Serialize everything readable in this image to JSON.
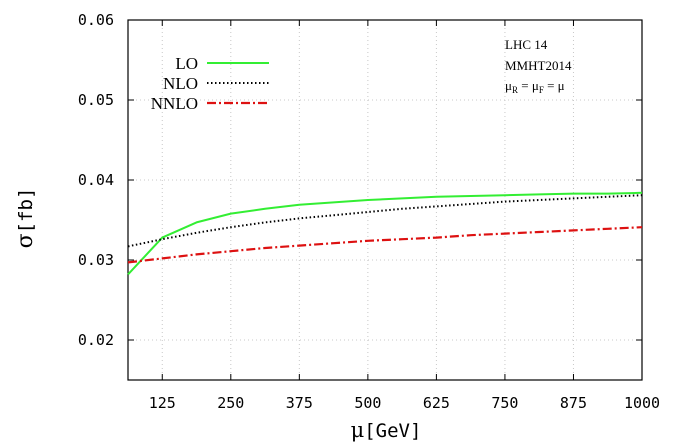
{
  "chart_data": {
    "type": "line",
    "xlabel_symbol": "μ",
    "xlabel_unit": "[GeV]",
    "ylabel_symbol": "σ",
    "ylabel_unit": "[fb]",
    "xlim": [
      62.5,
      1000
    ],
    "ylim": [
      0.015,
      0.06
    ],
    "x_ticks": [
      125,
      250,
      375,
      500,
      625,
      750,
      875,
      1000
    ],
    "x_tick_labels": [
      "125",
      "250",
      "375",
      "500",
      "625",
      "750",
      "875",
      "1000"
    ],
    "y_ticks": [
      0.02,
      0.03,
      0.04,
      0.05,
      0.06
    ],
    "y_tick_labels": [
      "0.02",
      "0.03",
      "0.04",
      "0.05",
      "0.06"
    ],
    "grid": true,
    "legend_position": "top-left",
    "annotations": {
      "line1": "LHC 14",
      "line2": "MMHT2014",
      "line3_mu_r": "μ",
      "line3_r_sub": "R",
      "line3_eq1": " = ",
      "line3_mu_f": "μ",
      "line3_f_sub": "F",
      "line3_eq2": " = μ"
    },
    "series": [
      {
        "name": "LO",
        "color": "#33ee33",
        "style": "solid",
        "x": [
          62.5,
          125,
          187.5,
          250,
          312.5,
          375,
          437.5,
          500,
          562.5,
          625,
          687.5,
          750,
          812.5,
          875,
          937.5,
          1000
        ],
        "y": [
          0.0282,
          0.0328,
          0.0347,
          0.0358,
          0.0364,
          0.0369,
          0.0372,
          0.0375,
          0.0377,
          0.0379,
          0.038,
          0.0381,
          0.0382,
          0.0383,
          0.0383,
          0.0384
        ]
      },
      {
        "name": "NLO",
        "color": "#000000",
        "style": "dotted",
        "x": [
          62.5,
          125,
          187.5,
          250,
          312.5,
          375,
          437.5,
          500,
          562.5,
          625,
          687.5,
          750,
          812.5,
          875,
          937.5,
          1000
        ],
        "y": [
          0.0317,
          0.0326,
          0.0334,
          0.0341,
          0.0347,
          0.0352,
          0.0356,
          0.036,
          0.0364,
          0.0367,
          0.037,
          0.0373,
          0.0375,
          0.0377,
          0.0379,
          0.0381
        ]
      },
      {
        "name": "NNLO",
        "color": "#dd1111",
        "style": "dashdot",
        "x": [
          62.5,
          125,
          187.5,
          250,
          312.5,
          375,
          437.5,
          500,
          562.5,
          625,
          687.5,
          750,
          812.5,
          875,
          937.5,
          1000
        ],
        "y": [
          0.0297,
          0.0302,
          0.0307,
          0.0311,
          0.0315,
          0.0318,
          0.0321,
          0.0324,
          0.0326,
          0.0328,
          0.0331,
          0.0333,
          0.0335,
          0.0337,
          0.0339,
          0.0341
        ]
      }
    ]
  }
}
